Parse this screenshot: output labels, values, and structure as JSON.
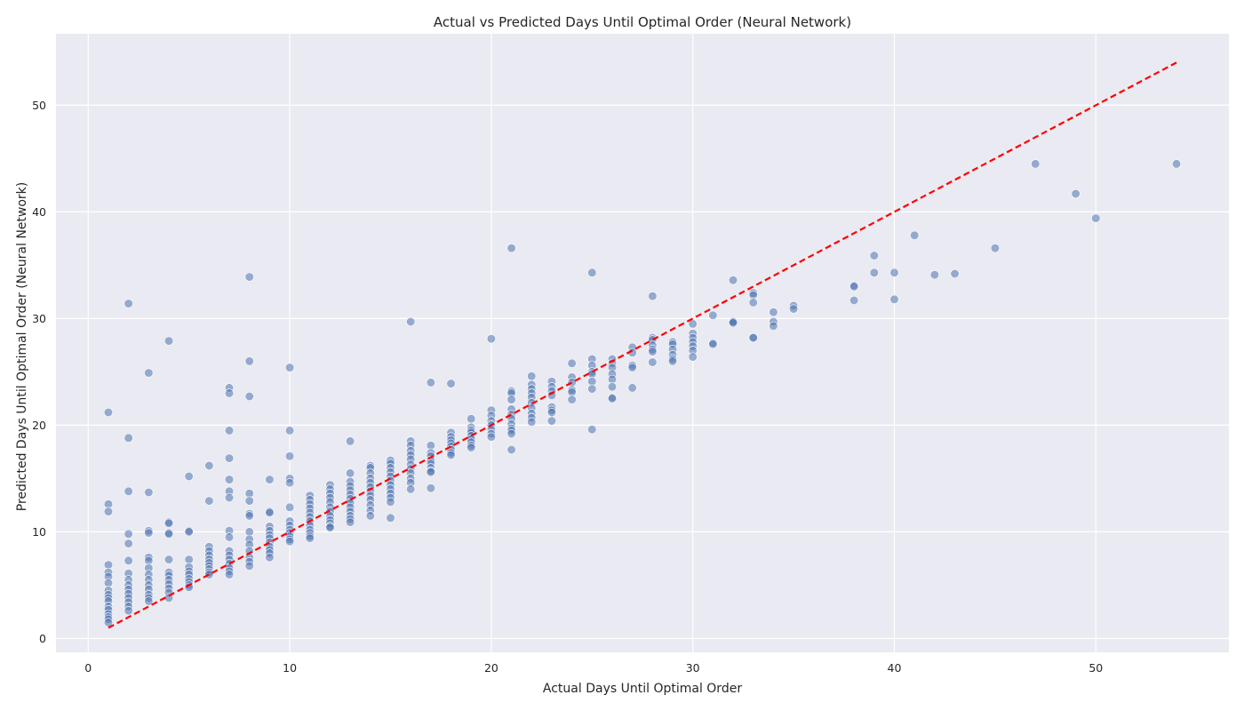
{
  "chart_data": {
    "type": "scatter",
    "title": "Actual vs Predicted Days Until Optimal Order (Neural Network)",
    "xlabel": "Actual Days Until Optimal Order",
    "ylabel": "Predicted Days Until Optimal Order (Neural Network)",
    "xlim": [
      -1.6,
      56.6
    ],
    "ylim": [
      -1.3,
      56.7
    ],
    "xticks": [
      0,
      10,
      20,
      30,
      40,
      50
    ],
    "yticks": [
      0,
      10,
      20,
      30,
      40,
      50
    ],
    "grid": true,
    "point_color": "#4c72b0",
    "reference_line": {
      "x": [
        1,
        54
      ],
      "y": [
        1,
        54
      ],
      "color": "#ff0000",
      "style": "dashed"
    },
    "series": [
      {
        "x": [
          1,
          1,
          1,
          1,
          1,
          1,
          1,
          1,
          1,
          1,
          1,
          1,
          1,
          1,
          1,
          1,
          1,
          2,
          2,
          2,
          2,
          2,
          2,
          2,
          2,
          2,
          2,
          2,
          2,
          2,
          2,
          2,
          3,
          3,
          3,
          3,
          3,
          3,
          3,
          3,
          3,
          3,
          3,
          3,
          3,
          3,
          4,
          4,
          4,
          4,
          4,
          4,
          4,
          4,
          4,
          4,
          4,
          4,
          4,
          5,
          5,
          5,
          5,
          5,
          5,
          5,
          5,
          5,
          5,
          5,
          6,
          6,
          6,
          6,
          6,
          6,
          6,
          6,
          6,
          6,
          6,
          7,
          7,
          7,
          7,
          7,
          7,
          7,
          7,
          7,
          7,
          7,
          7,
          7,
          7,
          7,
          7,
          8,
          8,
          8,
          8,
          8,
          8,
          8,
          8,
          8,
          8,
          8,
          8,
          8,
          8,
          9,
          9,
          9,
          9,
          9,
          9,
          9,
          9,
          9,
          9,
          9,
          9,
          10,
          10,
          10,
          10,
          10,
          10,
          10,
          10,
          10,
          10,
          10,
          10,
          10,
          11,
          11,
          11,
          11,
          11,
          11,
          11,
          11,
          11,
          11,
          11,
          11,
          12,
          12,
          12,
          12,
          12,
          12,
          12,
          12,
          12,
          12,
          12,
          12,
          13,
          13,
          13,
          13,
          13,
          13,
          13,
          13,
          13,
          13,
          13,
          13,
          13,
          14,
          14,
          14,
          14,
          14,
          14,
          14,
          14,
          14,
          14,
          14,
          14,
          15,
          15,
          15,
          15,
          15,
          15,
          15,
          15,
          15,
          15,
          15,
          15,
          16,
          16,
          16,
          16,
          16,
          16,
          16,
          16,
          16,
          16,
          16,
          16,
          17,
          17,
          17,
          17,
          17,
          17,
          17,
          17,
          17,
          17,
          18,
          18,
          18,
          18,
          18,
          18,
          18,
          18,
          18,
          19,
          19,
          19,
          19,
          19,
          19,
          19,
          19,
          19,
          20,
          20,
          20,
          20,
          20,
          20,
          20,
          20,
          21,
          21,
          21,
          21,
          21,
          21,
          21,
          21,
          21,
          21,
          21,
          21,
          22,
          22,
          22,
          22,
          22,
          22,
          22,
          22,
          22,
          22,
          23,
          23,
          23,
          23,
          23,
          23,
          23,
          23,
          24,
          24,
          24,
          24,
          24,
          24,
          25,
          25,
          25,
          25,
          25,
          25,
          25,
          25,
          26,
          26,
          26,
          26,
          26,
          26,
          26,
          26,
          27,
          27,
          27,
          27,
          27,
          28,
          28,
          28,
          28,
          28,
          28,
          28,
          29,
          29,
          29,
          29,
          29,
          29,
          30,
          30,
          30,
          30,
          30,
          30,
          30,
          31,
          31,
          31,
          32,
          32,
          32,
          32,
          33,
          33,
          33,
          33,
          33,
          34,
          34,
          34,
          35,
          35,
          38,
          38,
          38,
          39,
          39,
          40,
          40,
          41,
          42,
          43,
          45,
          47,
          49,
          50,
          54
        ],
        "y": [
          21.2,
          12.6,
          11.9,
          6.9,
          6.2,
          5.8,
          5.2,
          4.5,
          4.1,
          3.8,
          3.5,
          3.0,
          2.7,
          2.3,
          2.0,
          1.8,
          1.5,
          31.4,
          18.8,
          13.8,
          9.8,
          8.9,
          7.3,
          6.1,
          5.5,
          5.0,
          4.6,
          4.2,
          3.8,
          3.4,
          3.0,
          2.6,
          24.9,
          13.7,
          10.1,
          9.9,
          7.6,
          7.3,
          6.6,
          6.0,
          5.5,
          5.0,
          4.6,
          4.1,
          3.8,
          3.5,
          27.9,
          10.9,
          10.8,
          9.9,
          9.8,
          7.4,
          6.2,
          5.9,
          5.5,
          5.1,
          4.7,
          4.3,
          3.8,
          15.2,
          10.1,
          10.0,
          7.4,
          6.7,
          6.3,
          6.0,
          5.6,
          5.3,
          5.0,
          4.8,
          16.2,
          12.9,
          8.6,
          8.2,
          7.8,
          7.4,
          7.1,
          6.8,
          6.5,
          6.2,
          6.0,
          23.5,
          23.0,
          19.5,
          16.9,
          14.9,
          13.8,
          13.2,
          10.1,
          9.5,
          8.2,
          7.8,
          7.4,
          7.0,
          6.6,
          6.3,
          6.0,
          33.9,
          26.0,
          22.7,
          13.6,
          12.9,
          11.7,
          11.5,
          10.0,
          9.3,
          8.8,
          8.2,
          7.6,
          7.2,
          6.8,
          14.9,
          11.9,
          11.8,
          10.5,
          10.1,
          9.7,
          9.4,
          9.0,
          8.6,
          8.3,
          8.0,
          7.6,
          25.4,
          19.5,
          17.1,
          15.0,
          14.6,
          12.3,
          11.0,
          10.6,
          10.2,
          9.9,
          9.6,
          9.3,
          9.1,
          13.4,
          13.0,
          12.6,
          12.2,
          11.8,
          11.4,
          11.0,
          10.6,
          10.2,
          9.9,
          9.6,
          9.4,
          14.4,
          14.0,
          13.6,
          13.2,
          12.8,
          12.3,
          11.9,
          11.5,
          11.1,
          10.8,
          10.5,
          10.4,
          18.5,
          15.5,
          14.7,
          14.3,
          13.9,
          13.5,
          13.1,
          12.7,
          12.3,
          11.9,
          11.5,
          11.2,
          10.9,
          16.2,
          16.0,
          15.5,
          15.0,
          14.6,
          14.2,
          13.8,
          13.4,
          13.0,
          12.5,
          12.0,
          11.5,
          16.7,
          16.4,
          16.0,
          15.6,
          15.2,
          14.8,
          14.4,
          14.0,
          13.6,
          13.2,
          12.8,
          11.3,
          29.7,
          18.5,
          18.1,
          17.6,
          17.2,
          16.8,
          16.3,
          15.9,
          15.5,
          15.0,
          14.6,
          14.0,
          24.0,
          18.1,
          17.4,
          17.1,
          16.7,
          16.4,
          16.0,
          15.7,
          15.6,
          14.1,
          23.9,
          19.3,
          18.9,
          18.6,
          18.3,
          18.0,
          17.7,
          17.4,
          17.2,
          20.6,
          19.8,
          19.5,
          19.3,
          19.0,
          18.7,
          18.4,
          18.1,
          17.9,
          28.1,
          21.4,
          20.9,
          20.4,
          20.0,
          19.6,
          19.2,
          18.9,
          36.6,
          23.2,
          23.0,
          22.4,
          21.5,
          21.0,
          20.6,
          20.1,
          19.7,
          19.5,
          19.2,
          17.7,
          24.6,
          23.8,
          23.4,
          23.0,
          22.6,
          22.1,
          21.6,
          21.1,
          20.7,
          20.3,
          24.1,
          23.6,
          23.2,
          22.8,
          21.7,
          21.4,
          21.2,
          20.4,
          25.8,
          24.5,
          24.0,
          23.3,
          23.1,
          22.4,
          34.3,
          26.2,
          25.6,
          25.0,
          24.8,
          24.1,
          23.4,
          19.6,
          26.2,
          25.8,
          25.4,
          24.8,
          24.3,
          23.6,
          22.6,
          22.5,
          27.3,
          26.8,
          25.6,
          25.4,
          23.5,
          32.1,
          28.2,
          28.0,
          27.5,
          27.1,
          26.9,
          25.9,
          27.8,
          27.6,
          27.1,
          26.6,
          26.2,
          26.0,
          29.5,
          28.6,
          28.2,
          27.8,
          27.4,
          27.0,
          26.4,
          30.3,
          27.7,
          27.6,
          33.6,
          29.7,
          29.7,
          29.6,
          32.4,
          32.2,
          31.5,
          28.2,
          28.2,
          30.6,
          29.7,
          29.3,
          31.2,
          30.9,
          33.1,
          33.0,
          31.7,
          35.9,
          34.3,
          34.3,
          31.8,
          37.8,
          34.1,
          34.2,
          36.6,
          44.5,
          41.7,
          39.4,
          44.5
        ]
      }
    ]
  }
}
